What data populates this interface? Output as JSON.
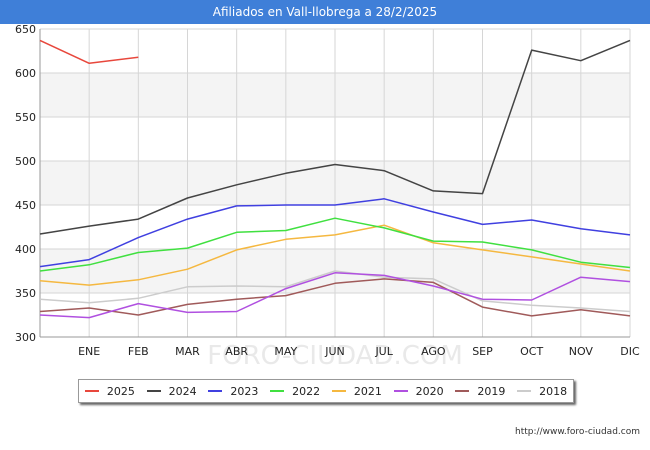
{
  "title": "Afiliados en Vall-llobrega a 28/2/2025",
  "source": "http://www.foro-ciudad.com",
  "watermark": "FORO-CIUDAD.COM",
  "chart_data": {
    "type": "line",
    "categories": [
      "",
      "ENE",
      "FEB",
      "MAR",
      "ABR",
      "MAY",
      "JUN",
      "JUL",
      "AGO",
      "SEP",
      "OCT",
      "NOV",
      "DIC"
    ],
    "ylim": [
      300,
      650
    ],
    "yticks": [
      300,
      350,
      400,
      450,
      500,
      550,
      600,
      650
    ],
    "grid": true,
    "legend_position": "bottom",
    "series": [
      {
        "name": "2025",
        "color": "#e8473c",
        "values": [
          637,
          611,
          618,
          null,
          null,
          null,
          null,
          null,
          null,
          null,
          null,
          null,
          null
        ]
      },
      {
        "name": "2024",
        "color": "#444444",
        "values": [
          417,
          426,
          434,
          458,
          473,
          486,
          496,
          489,
          466,
          463,
          626,
          614,
          637
        ]
      },
      {
        "name": "2023",
        "color": "#4040e0",
        "values": [
          380,
          388,
          413,
          434,
          449,
          450,
          450,
          457,
          442,
          428,
          433,
          423,
          416
        ]
      },
      {
        "name": "2022",
        "color": "#40e040",
        "values": [
          375,
          382,
          396,
          401,
          419,
          421,
          435,
          424,
          409,
          408,
          399,
          385,
          379
        ]
      },
      {
        "name": "2021",
        "color": "#f5b840",
        "values": [
          364,
          359,
          365,
          377,
          399,
          411,
          416,
          427,
          407,
          399,
          391,
          383,
          375
        ]
      },
      {
        "name": "2020",
        "color": "#b050e0",
        "values": [
          325,
          322,
          338,
          328,
          329,
          355,
          373,
          370,
          358,
          343,
          342,
          368,
          363
        ]
      },
      {
        "name": "2019",
        "color": "#a05a5a",
        "values": [
          329,
          333,
          325,
          337,
          343,
          347,
          361,
          366,
          362,
          334,
          324,
          331,
          324
        ]
      },
      {
        "name": "2018",
        "color": "#cccccc",
        "values": [
          343,
          339,
          344,
          357,
          358,
          357,
          375,
          368,
          366,
          341,
          336,
          333,
          329
        ]
      }
    ]
  }
}
